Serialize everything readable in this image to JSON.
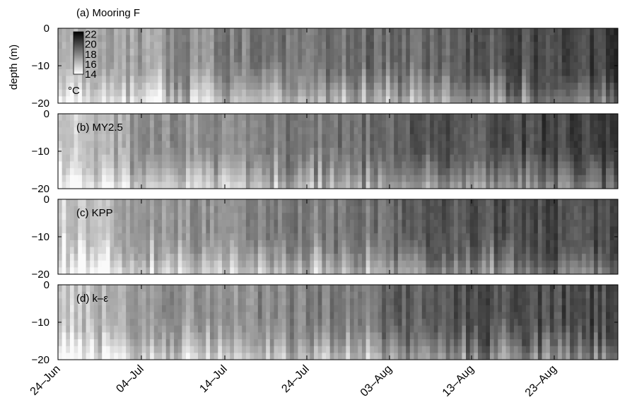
{
  "chart_data": {
    "type": "heatmap",
    "colormap": "grayscale (white = cold, black = warm)",
    "ylabel": "depth (m)",
    "yticks": [
      0,
      -10,
      -20
    ],
    "ylim": [
      -20,
      0
    ],
    "x_ticks": [
      "24–Jun",
      "04–Jul",
      "14–Jul",
      "24–Jul",
      "03–Aug",
      "13–Aug",
      "23–Aug"
    ],
    "colorbar": {
      "ticks": [
        22,
        20,
        18,
        16,
        14
      ],
      "unit": "°C",
      "range": [
        14,
        22.5
      ]
    },
    "panels": [
      {
        "label": "(a) Mooring F",
        "warmth_by_period": [
          0.3,
          0.4,
          0.5,
          0.55,
          0.62,
          0.7,
          0.75
        ]
      },
      {
        "label": "(b) MY2.5",
        "warmth_by_period": [
          0.18,
          0.42,
          0.48,
          0.55,
          0.66,
          0.72,
          0.74
        ]
      },
      {
        "label": "(c) KPP",
        "warmth_by_period": [
          0.18,
          0.4,
          0.46,
          0.52,
          0.64,
          0.7,
          0.72
        ]
      },
      {
        "label": "(d) k–ε",
        "warmth_by_period": [
          0.18,
          0.4,
          0.46,
          0.52,
          0.64,
          0.7,
          0.72
        ]
      }
    ]
  }
}
